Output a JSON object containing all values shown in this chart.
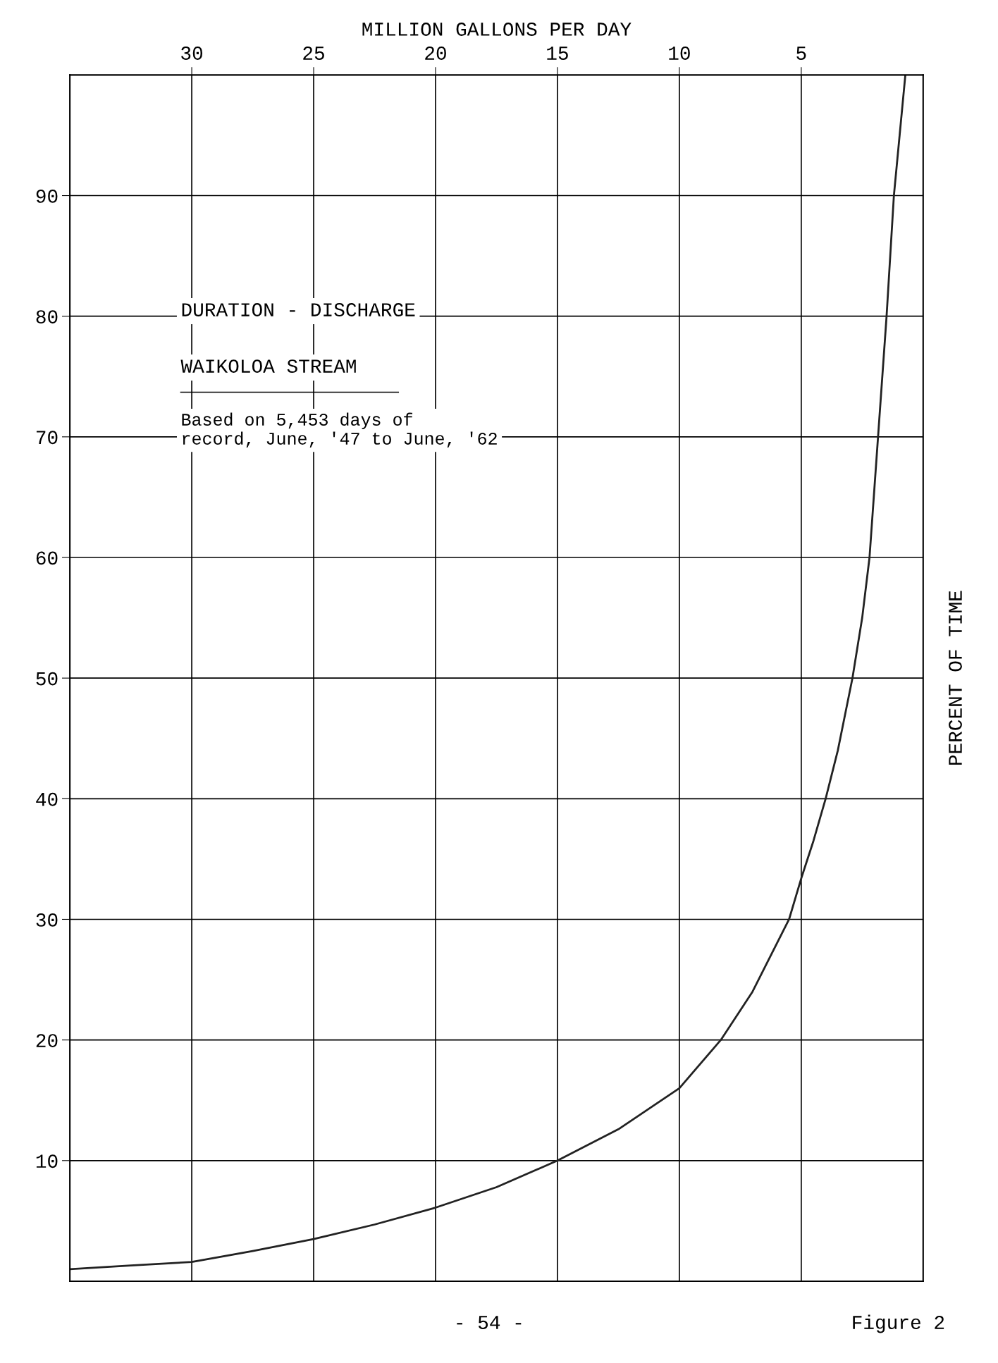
{
  "chart_data": {
    "type": "line",
    "title": "DURATION - DISCHARGE",
    "subtitle": "WAIKOLOA STREAM",
    "xlabel": "MILLION GALLONS PER DAY",
    "ylabel": "PERCENT OF TIME",
    "x": [
      35,
      32.5,
      30,
      27.5,
      25,
      22.5,
      20,
      17.5,
      15,
      12.5,
      10,
      8.3,
      7,
      6,
      5.5,
      5,
      4.5,
      4,
      3.5,
      2.9,
      2.5,
      2.2,
      1.85,
      1.5,
      1.2,
      0.73
    ],
    "series": [
      {
        "color": "#222222",
        "values": [
          1.0,
          1.3,
          1.6,
          2.5,
          3.5,
          4.7,
          6.1,
          7.8,
          10,
          12.6,
          16,
          20,
          24,
          28,
          30,
          33.4,
          36.5,
          40,
          44,
          50,
          55,
          60,
          70,
          80,
          90,
          100
        ]
      }
    ],
    "xlim": [
      35,
      0
    ],
    "xticks": [
      30,
      25,
      20,
      15,
      10,
      5
    ],
    "ylim": [
      0,
      100
    ],
    "yticks": [
      10,
      20,
      30,
      40,
      50,
      60,
      70,
      80,
      90
    ],
    "grid": true,
    "legend": false,
    "marker": "none",
    "line_style": "solid",
    "annotations": [
      "Based on 5,453 days of\nrecord, June, '47 to June, '62",
      "- 54 -",
      "Figure 2"
    ]
  }
}
